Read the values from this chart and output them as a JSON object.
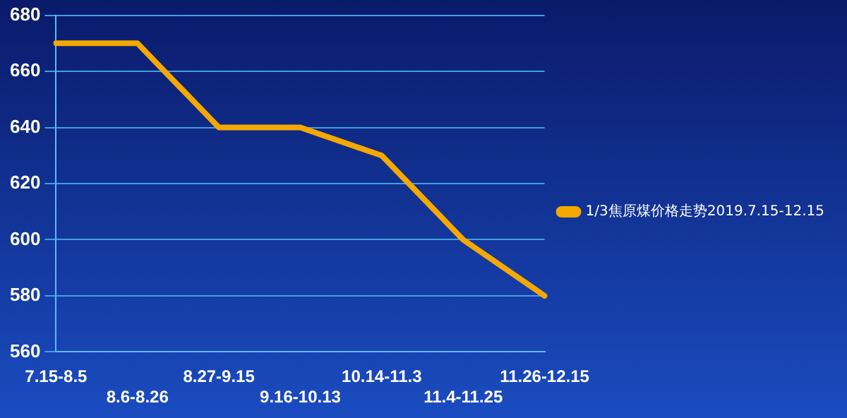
{
  "chart_data": {
    "type": "line",
    "categories": [
      "7.15-8.5",
      "8.6-8.26",
      "8.27-9.15",
      "9.16-10.13",
      "10.14-11.3",
      "11.4-11.25",
      "11.26-12.15"
    ],
    "series": [
      {
        "name": "1/3焦原煤价格走势2019.7.15-12.15",
        "color": "#f5a800",
        "values": [
          670,
          670,
          640,
          640,
          630,
          600,
          580
        ]
      }
    ],
    "ylim": [
      560,
      680
    ],
    "yticks": [
      560,
      580,
      600,
      620,
      640,
      660,
      680
    ],
    "grid": "y",
    "legend": "right",
    "marker": "none",
    "line_style": "solid"
  }
}
